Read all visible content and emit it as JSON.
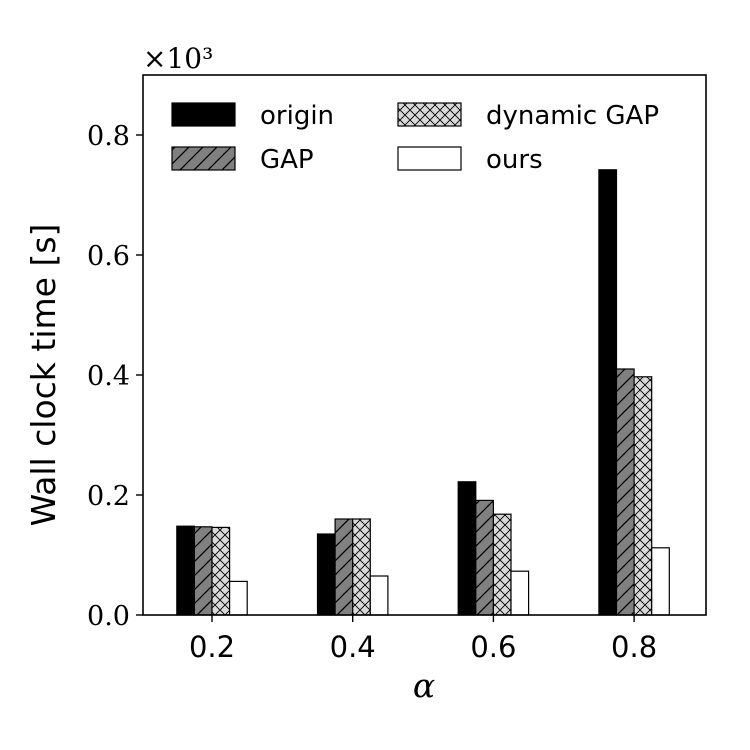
{
  "chart_data": {
    "type": "bar",
    "categories": [
      "0.2",
      "0.4",
      "0.6",
      "0.8"
    ],
    "series": [
      {
        "name": "origin",
        "values": [
          0.148,
          0.135,
          0.222,
          0.742
        ],
        "fill": "#000000",
        "hatch": "none"
      },
      {
        "name": "GAP",
        "values": [
          0.147,
          0.16,
          0.191,
          0.41
        ],
        "fill": "#808080",
        "hatch": "diagonal"
      },
      {
        "name": "dynamic GAP",
        "values": [
          0.146,
          0.16,
          0.168,
          0.397
        ],
        "fill": "#d9d9d9",
        "hatch": "cross"
      },
      {
        "name": "ours",
        "values": [
          0.056,
          0.065,
          0.073,
          0.112
        ],
        "fill": "#ffffff",
        "hatch": "none"
      }
    ],
    "xlabel": "α",
    "ylabel": "Wall clock time [s]",
    "y_multiplier": "×10³",
    "ylim": [
      0,
      0.9
    ],
    "yticks": [
      "0.0",
      "0.2",
      "0.4",
      "0.6",
      "0.8"
    ],
    "ytick_values": [
      0,
      0.2,
      0.4,
      0.6,
      0.8
    ],
    "legend_position": "upper",
    "legend_columns": 2,
    "grid": false
  }
}
